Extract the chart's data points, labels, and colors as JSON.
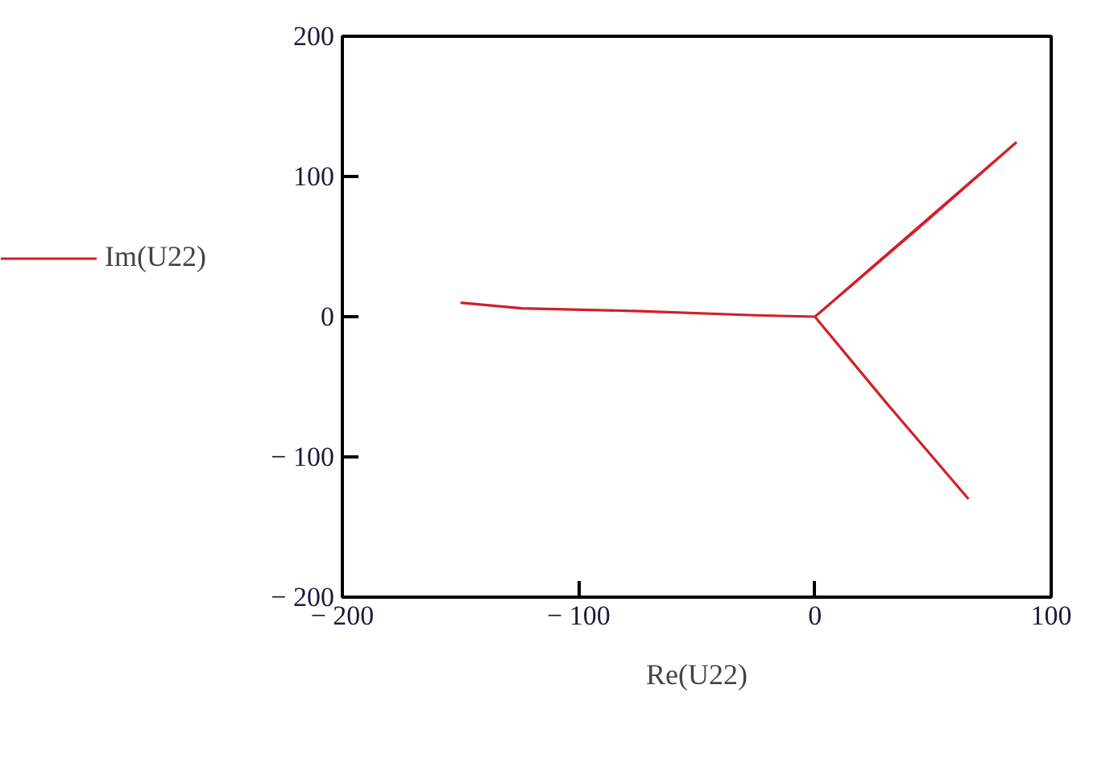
{
  "chart_data": {
    "type": "line",
    "xlabel": "Re(U22)",
    "xlim": [
      -200,
      100
    ],
    "ylim": [
      -200,
      200
    ],
    "xticks": [
      {
        "value": -200,
        "label": "− 200"
      },
      {
        "value": -100,
        "label": "− 100"
      },
      0,
      100
    ],
    "yticks": [
      {
        "value": -200,
        "label": "− 200"
      },
      {
        "value": -100,
        "label": "− 100"
      },
      0,
      100,
      200
    ],
    "grid": false,
    "legend": "left",
    "series": [
      {
        "name": "Im(U22)",
        "color": "#d0202a",
        "x": [
          -150,
          -124,
          -74,
          -25,
          0,
          43,
          85,
          0,
          30,
          65
        ],
        "values": [
          10,
          6,
          4,
          1,
          0,
          62,
          124,
          0,
          -61,
          -130
        ]
      }
    ]
  }
}
